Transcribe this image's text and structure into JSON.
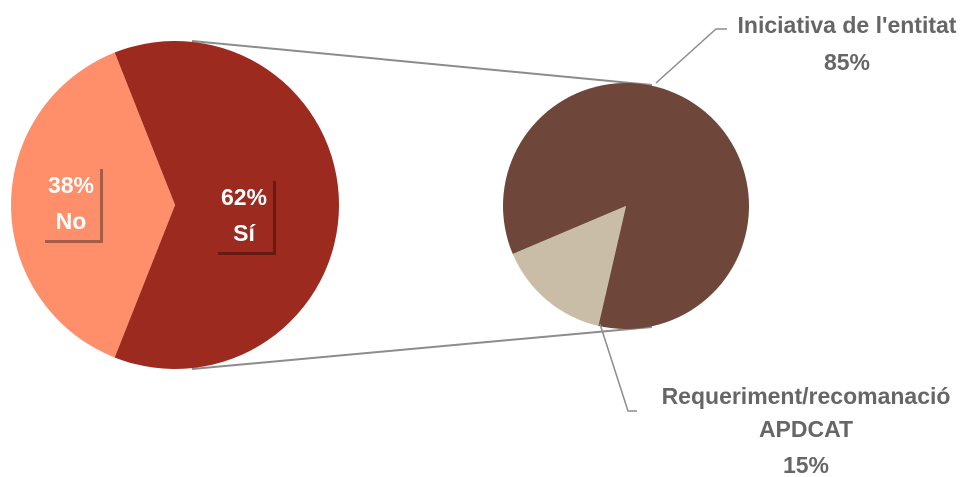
{
  "chart_data": {
    "type": "pie",
    "charts": [
      {
        "slices": [
          {
            "label": "Sí",
            "value": 62,
            "value_label": "62%",
            "color": "#9c2a1f"
          },
          {
            "label": "No",
            "value": 38,
            "value_label": "38%",
            "color": "#ff8f6b"
          }
        ]
      },
      {
        "slices": [
          {
            "label": "Iniciativa de l'entitat",
            "value": 85,
            "value_label": "85%",
            "color": "#6e473a"
          },
          {
            "label": "Requeriment/recomanació",
            "label_line2": "APDCAT",
            "value": 15,
            "value_label": "15%",
            "color": "#c9bda8"
          }
        ]
      }
    ],
    "legend": "none",
    "label_color_main": "#ffffff",
    "label_color_secondary": "#666666",
    "connector_color": "#8c8c8c"
  }
}
